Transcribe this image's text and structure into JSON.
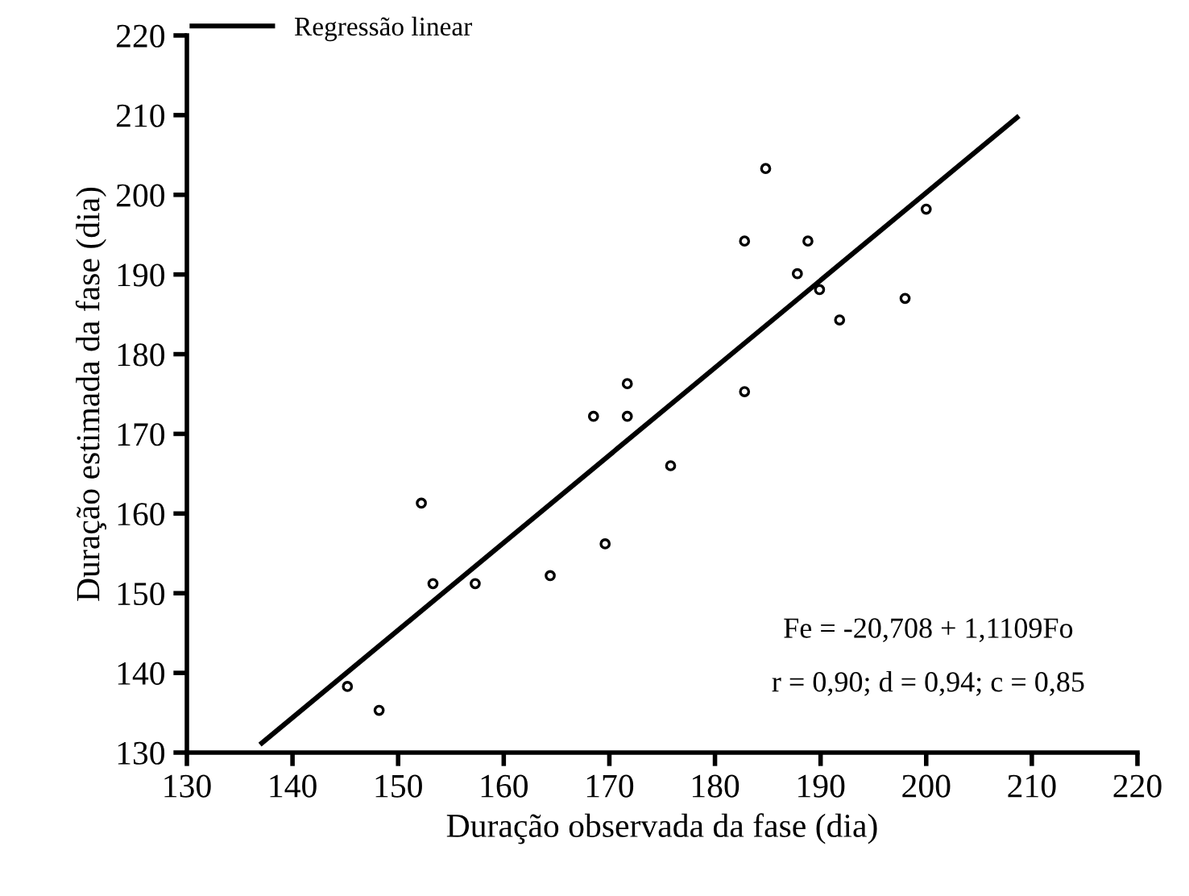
{
  "chart_data": {
    "type": "scatter",
    "xlabel": "Duração observada da fase (dia)",
    "ylabel": "Duração estimada da fase (dia)",
    "xlim": [
      130,
      220
    ],
    "ylim": [
      130,
      220
    ],
    "xticks": [
      130,
      140,
      150,
      160,
      170,
      180,
      190,
      200,
      210,
      220
    ],
    "yticks": [
      130,
      140,
      150,
      160,
      170,
      180,
      190,
      200,
      210,
      220
    ],
    "grid": false,
    "legend": "top left",
    "series": [
      {
        "color": "#000000",
        "marker": "circle",
        "x": [
          145.2,
          148.2,
          152.2,
          153.3,
          157.3,
          164.4,
          168.5,
          169.6,
          171.7,
          171.7,
          175.8,
          182.8,
          182.8,
          184.8,
          187.8,
          188.8,
          189.9,
          191.8,
          198.0,
          200.0
        ],
        "values": [
          138.3,
          135.3,
          161.3,
          151.2,
          151.2,
          152.2,
          172.2,
          156.2,
          176.3,
          172.2,
          166.0,
          194.2,
          175.3,
          203.3,
          190.1,
          194.2,
          188.1,
          184.3,
          187.0,
          198.2
        ]
      },
      {
        "type": "line",
        "name": "Regressão linear",
        "color": "#000000",
        "line_style": "solid",
        "marker": "none",
        "x": [
          137.1,
          208.6
        ],
        "values": [
          131.2,
          209.7
        ]
      }
    ],
    "annotations": [
      "Fe = -20,708 + 1,1109Fo",
      "r = 0,90; d = 0,94; c = 0,85"
    ]
  }
}
